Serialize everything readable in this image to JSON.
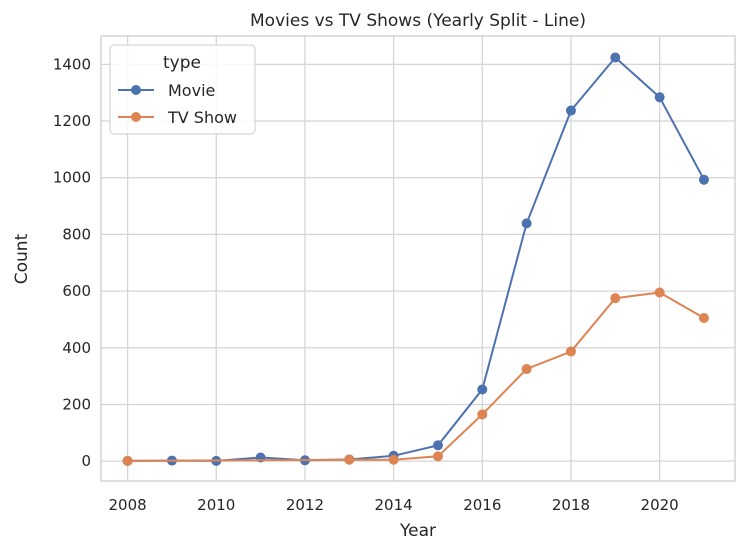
{
  "chart_data": {
    "type": "line",
    "title": "Movies vs TV Shows (Yearly Split - Line)",
    "xlabel": "Year",
    "ylabel": "Count",
    "xlim": [
      2007.4,
      2021.7
    ],
    "ylim": [
      -70,
      1500
    ],
    "xticks": [
      2008,
      2010,
      2012,
      2014,
      2016,
      2018,
      2020
    ],
    "yticks": [
      0,
      200,
      400,
      600,
      800,
      1000,
      1200,
      1400
    ],
    "grid": true,
    "legend": {
      "title": "type",
      "placement": "top-left"
    },
    "series": [
      {
        "name": "Movie",
        "color": "#4c72b0",
        "x": [
          2008,
          2009,
          2010,
          2011,
          2012,
          2013,
          2014,
          2015,
          2016,
          2017,
          2018,
          2019,
          2020,
          2021
        ],
        "values": [
          1,
          2,
          1,
          13,
          3,
          6,
          19,
          56,
          253,
          839,
          1237,
          1424,
          1284,
          993
        ]
      },
      {
        "name": "TV Show",
        "color": "#dd8452",
        "x": [
          2008,
          2013,
          2014,
          2015,
          2016,
          2017,
          2018,
          2019,
          2020,
          2021
        ],
        "values": [
          1,
          5,
          5,
          17,
          165,
          325,
          387,
          575,
          595,
          505
        ]
      }
    ]
  }
}
